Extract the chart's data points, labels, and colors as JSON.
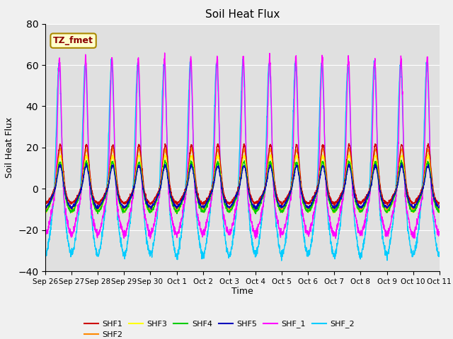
{
  "title": "Soil Heat Flux",
  "xlabel": "Time",
  "ylabel": "Soil Heat Flux",
  "ylim": [
    -40,
    80
  ],
  "yticks": [
    -40,
    -20,
    0,
    20,
    40,
    60,
    80
  ],
  "annotation": "TZ_fmet",
  "plot_bg": "#e0e0e0",
  "fig_bg": "#f0f0f0",
  "colors": {
    "SHF1": "#cc0000",
    "SHF2": "#ff8800",
    "SHF3": "#ffff00",
    "SHF4": "#00cc00",
    "SHF5": "#0000bb",
    "SHF_1": "#ff00ff",
    "SHF_2": "#00ccff"
  },
  "xtick_labels": [
    "Sep 26",
    "Sep 27",
    "Sep 28",
    "Sep 29",
    "Sep 30",
    "Oct 1",
    "Oct 2",
    "Oct 3",
    "Oct 4",
    "Oct 5",
    "Oct 6",
    "Oct 7",
    "Oct 8",
    "Oct 9",
    "Oct 10",
    "Oct 11"
  ],
  "num_days": 15,
  "pts_per_day": 144,
  "seed": 42
}
